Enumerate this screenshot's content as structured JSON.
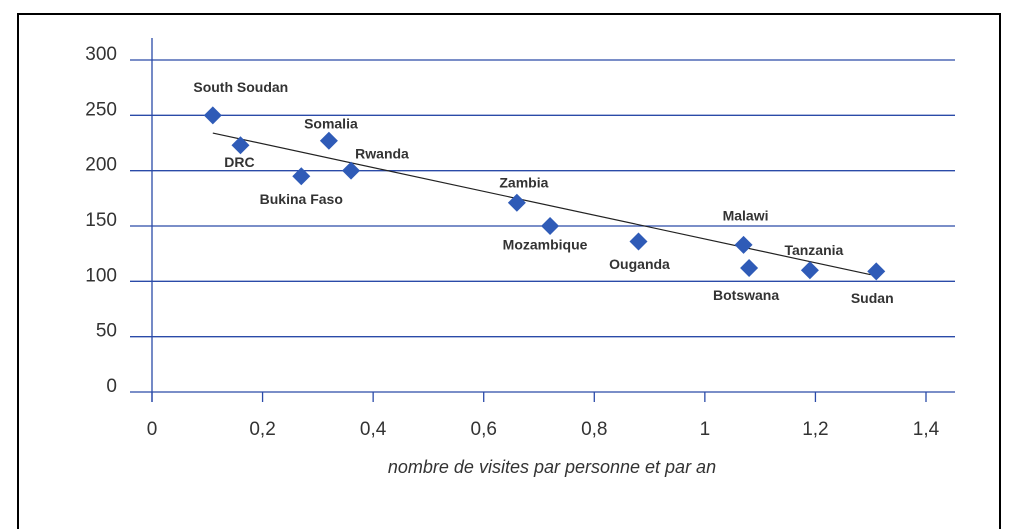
{
  "chart_data": {
    "type": "scatter",
    "x_label": "nombre de visites par personne et par an",
    "point_labels": [
      "South Soudan",
      "DRC",
      "Somalia",
      "Rwanda",
      "Bukina Faso",
      "Zambia",
      "Mozambique",
      "Ouganda",
      "Malawi",
      "Botswana",
      "Tanzania",
      "Sudan"
    ],
    "x": [
      0.11,
      0.16,
      0.32,
      0.36,
      0.27,
      0.66,
      0.72,
      0.88,
      1.07,
      1.08,
      1.19,
      1.31
    ],
    "values": [
      250,
      223,
      227,
      200,
      195,
      171,
      150,
      136,
      133,
      112,
      110,
      109
    ],
    "color": "#2f5bb7",
    "trendline": {
      "x": [
        0.11,
        1.3
      ],
      "y": [
        234,
        106
      ]
    },
    "xlim": [
      0,
      1.4
    ],
    "ylim": [
      0,
      300
    ],
    "xticks": [
      0,
      {
        "value": 0.2,
        "label": "0,2"
      },
      {
        "value": 0.4,
        "label": "0,4"
      },
      {
        "value": 0.6,
        "label": "0,6"
      },
      {
        "value": 0.8,
        "label": "0,8"
      },
      1,
      {
        "value": 1.2,
        "label": "1,2"
      },
      {
        "value": 1.4,
        "label": "1,4"
      }
    ],
    "yticks": [
      0,
      50,
      100,
      150,
      200,
      250,
      300
    ],
    "grid": true
  }
}
